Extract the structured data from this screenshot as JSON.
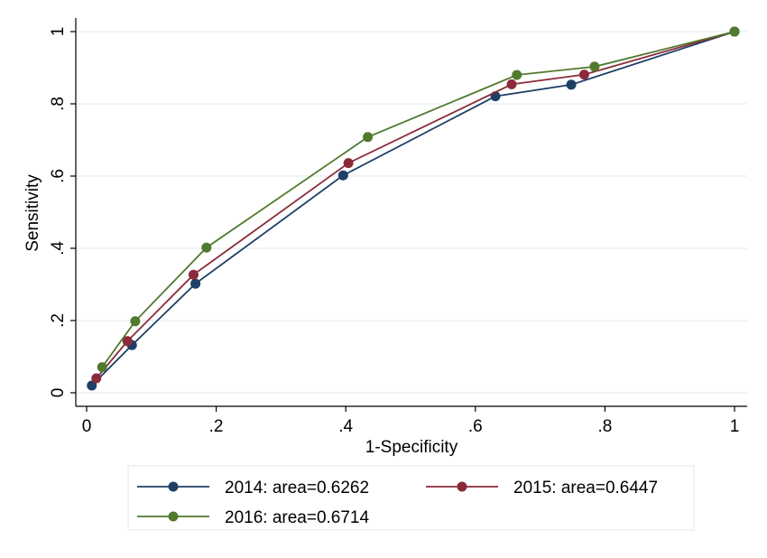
{
  "chart_data": {
    "type": "line",
    "xlabel": "1-Specificity",
    "ylabel": "Sensitivity",
    "xlim": [
      0,
      1
    ],
    "ylim": [
      0,
      1
    ],
    "x_ticks": [
      {
        "value": 0,
        "label": "0"
      },
      {
        "value": 0.2,
        "label": ".2"
      },
      {
        "value": 0.4,
        "label": ".4"
      },
      {
        "value": 0.6,
        "label": ".6"
      },
      {
        "value": 0.8,
        "label": ".8"
      },
      {
        "value": 1,
        "label": "1"
      }
    ],
    "y_ticks": [
      {
        "value": 0,
        "label": "0"
      },
      {
        "value": 0.2,
        "label": ".2"
      },
      {
        "value": 0.4,
        "label": ".4"
      },
      {
        "value": 0.6,
        "label": ".6"
      },
      {
        "value": 0.8,
        "label": ".8"
      },
      {
        "value": 1,
        "label": "1"
      }
    ],
    "grid": "horizontal",
    "legend_position": "bottom",
    "series": [
      {
        "name": "2014: area=0.6262",
        "color": "#1f3f66",
        "points": [
          [
            0.008,
            0.02
          ],
          [
            0.07,
            0.132
          ],
          [
            0.168,
            0.302
          ],
          [
            0.396,
            0.602
          ],
          [
            0.631,
            0.821
          ],
          [
            0.748,
            0.853
          ],
          [
            1.0,
            1.0
          ]
        ]
      },
      {
        "name": "2015: area=0.6447",
        "color": "#8b2b3a",
        "points": [
          [
            0.015,
            0.04
          ],
          [
            0.063,
            0.143
          ],
          [
            0.165,
            0.327
          ],
          [
            0.404,
            0.636
          ],
          [
            0.656,
            0.854
          ],
          [
            0.768,
            0.881
          ],
          [
            1.0,
            1.0
          ]
        ]
      },
      {
        "name": "2016: area=0.6714",
        "color": "#517a2e",
        "points": [
          [
            0.024,
            0.071
          ],
          [
            0.075,
            0.198
          ],
          [
            0.185,
            0.402
          ],
          [
            0.434,
            0.708
          ],
          [
            0.664,
            0.88
          ],
          [
            0.784,
            0.903
          ],
          [
            1.0,
            1.0
          ]
        ]
      }
    ]
  }
}
